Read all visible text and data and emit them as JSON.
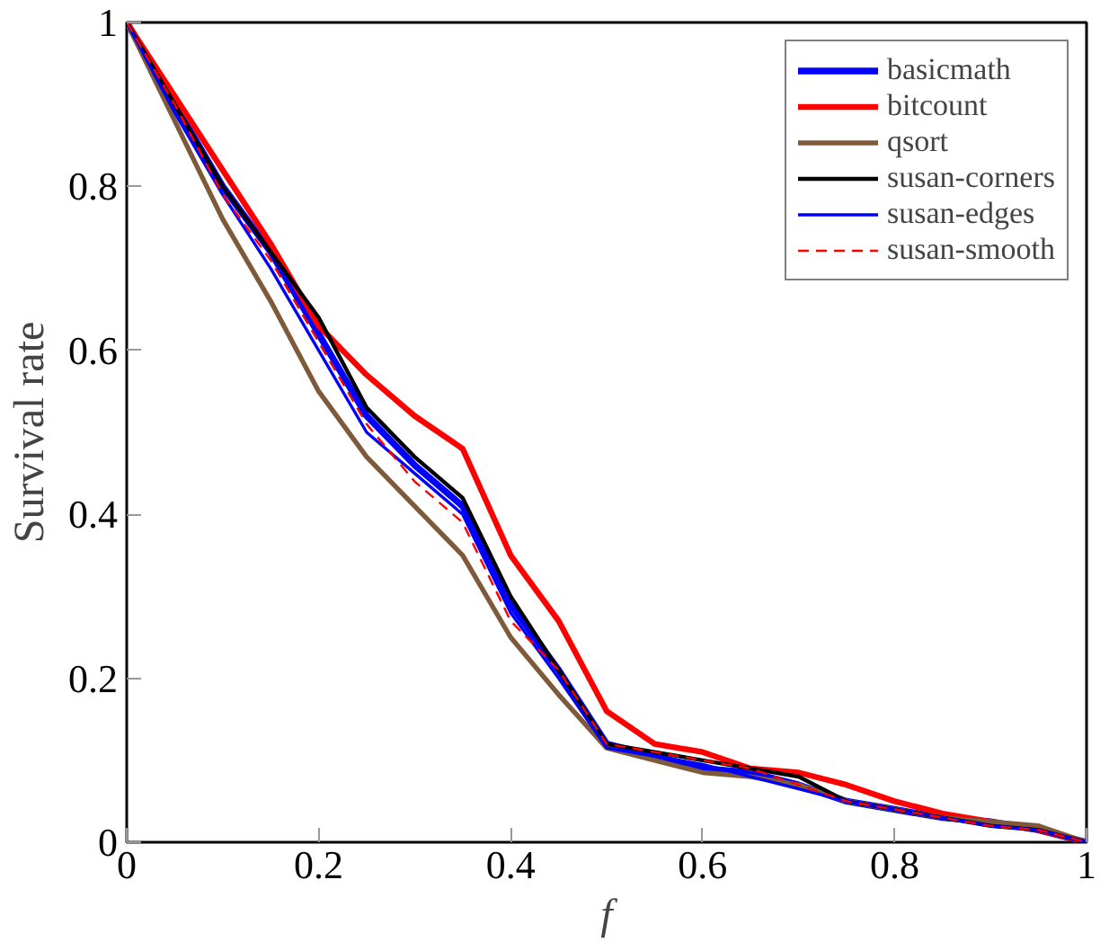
{
  "chart_data": {
    "type": "line",
    "xlabel": "f",
    "ylabel": "Survival rate",
    "x": [
      0,
      0.05,
      0.1,
      0.15,
      0.2,
      0.25,
      0.3,
      0.35,
      0.4,
      0.45,
      0.5,
      0.55,
      0.6,
      0.65,
      0.7,
      0.75,
      0.8,
      0.85,
      0.9,
      0.95,
      1
    ],
    "series": [
      {
        "name": "basicmath",
        "color": "#0000ff",
        "values": [
          1,
          0.9,
          0.8,
          0.72,
          0.62,
          0.52,
          0.46,
          0.41,
          0.29,
          0.21,
          0.12,
          0.105,
          0.09,
          0.085,
          0.07,
          0.05,
          0.04,
          0.03,
          0.025,
          0.015,
          0
        ]
      },
      {
        "name": "bitcount",
        "color": "#ff0000",
        "values": [
          1,
          0.91,
          0.82,
          0.73,
          0.63,
          0.57,
          0.52,
          0.48,
          0.35,
          0.27,
          0.16,
          0.12,
          0.11,
          0.09,
          0.085,
          0.07,
          0.05,
          0.035,
          0.025,
          0.015,
          0
        ]
      },
      {
        "name": "qsort",
        "color": "#7f5a3a",
        "values": [
          1,
          0.88,
          0.76,
          0.66,
          0.55,
          0.47,
          0.41,
          0.35,
          0.25,
          0.18,
          0.115,
          0.1,
          0.085,
          0.08,
          0.07,
          0.05,
          0.04,
          0.03,
          0.025,
          0.02,
          0
        ]
      },
      {
        "name": "susan-corners",
        "color": "#000000",
        "values": [
          1,
          0.9,
          0.8,
          0.72,
          0.64,
          0.53,
          0.47,
          0.42,
          0.3,
          0.21,
          0.12,
          0.11,
          0.1,
          0.09,
          0.08,
          0.05,
          0.04,
          0.03,
          0.02,
          0.015,
          0
        ]
      },
      {
        "name": "susan-edges",
        "color": "#0000ff",
        "values": [
          1,
          0.89,
          0.79,
          0.7,
          0.6,
          0.5,
          0.45,
          0.4,
          0.28,
          0.2,
          0.115,
          0.105,
          0.095,
          0.08,
          0.065,
          0.05,
          0.04,
          0.03,
          0.02,
          0.015,
          0
        ]
      },
      {
        "name": "susan-smooth",
        "color": "#ff0000",
        "line_style": "dashed",
        "values": [
          1,
          0.9,
          0.79,
          0.71,
          0.61,
          0.51,
          0.44,
          0.39,
          0.27,
          0.21,
          0.12,
          0.11,
          0.1,
          0.09,
          0.07,
          0.05,
          0.04,
          0.03,
          0.02,
          0.015,
          0
        ]
      }
    ],
    "xlim": [
      0,
      1
    ],
    "ylim": [
      0,
      1
    ],
    "xticks": [
      0,
      0.2,
      0.4,
      0.6,
      0.8,
      1
    ],
    "yticks": [
      0,
      0.2,
      0.4,
      0.6,
      0.8,
      1
    ],
    "grid": false,
    "legend": "top right",
    "line_style": "solid"
  }
}
